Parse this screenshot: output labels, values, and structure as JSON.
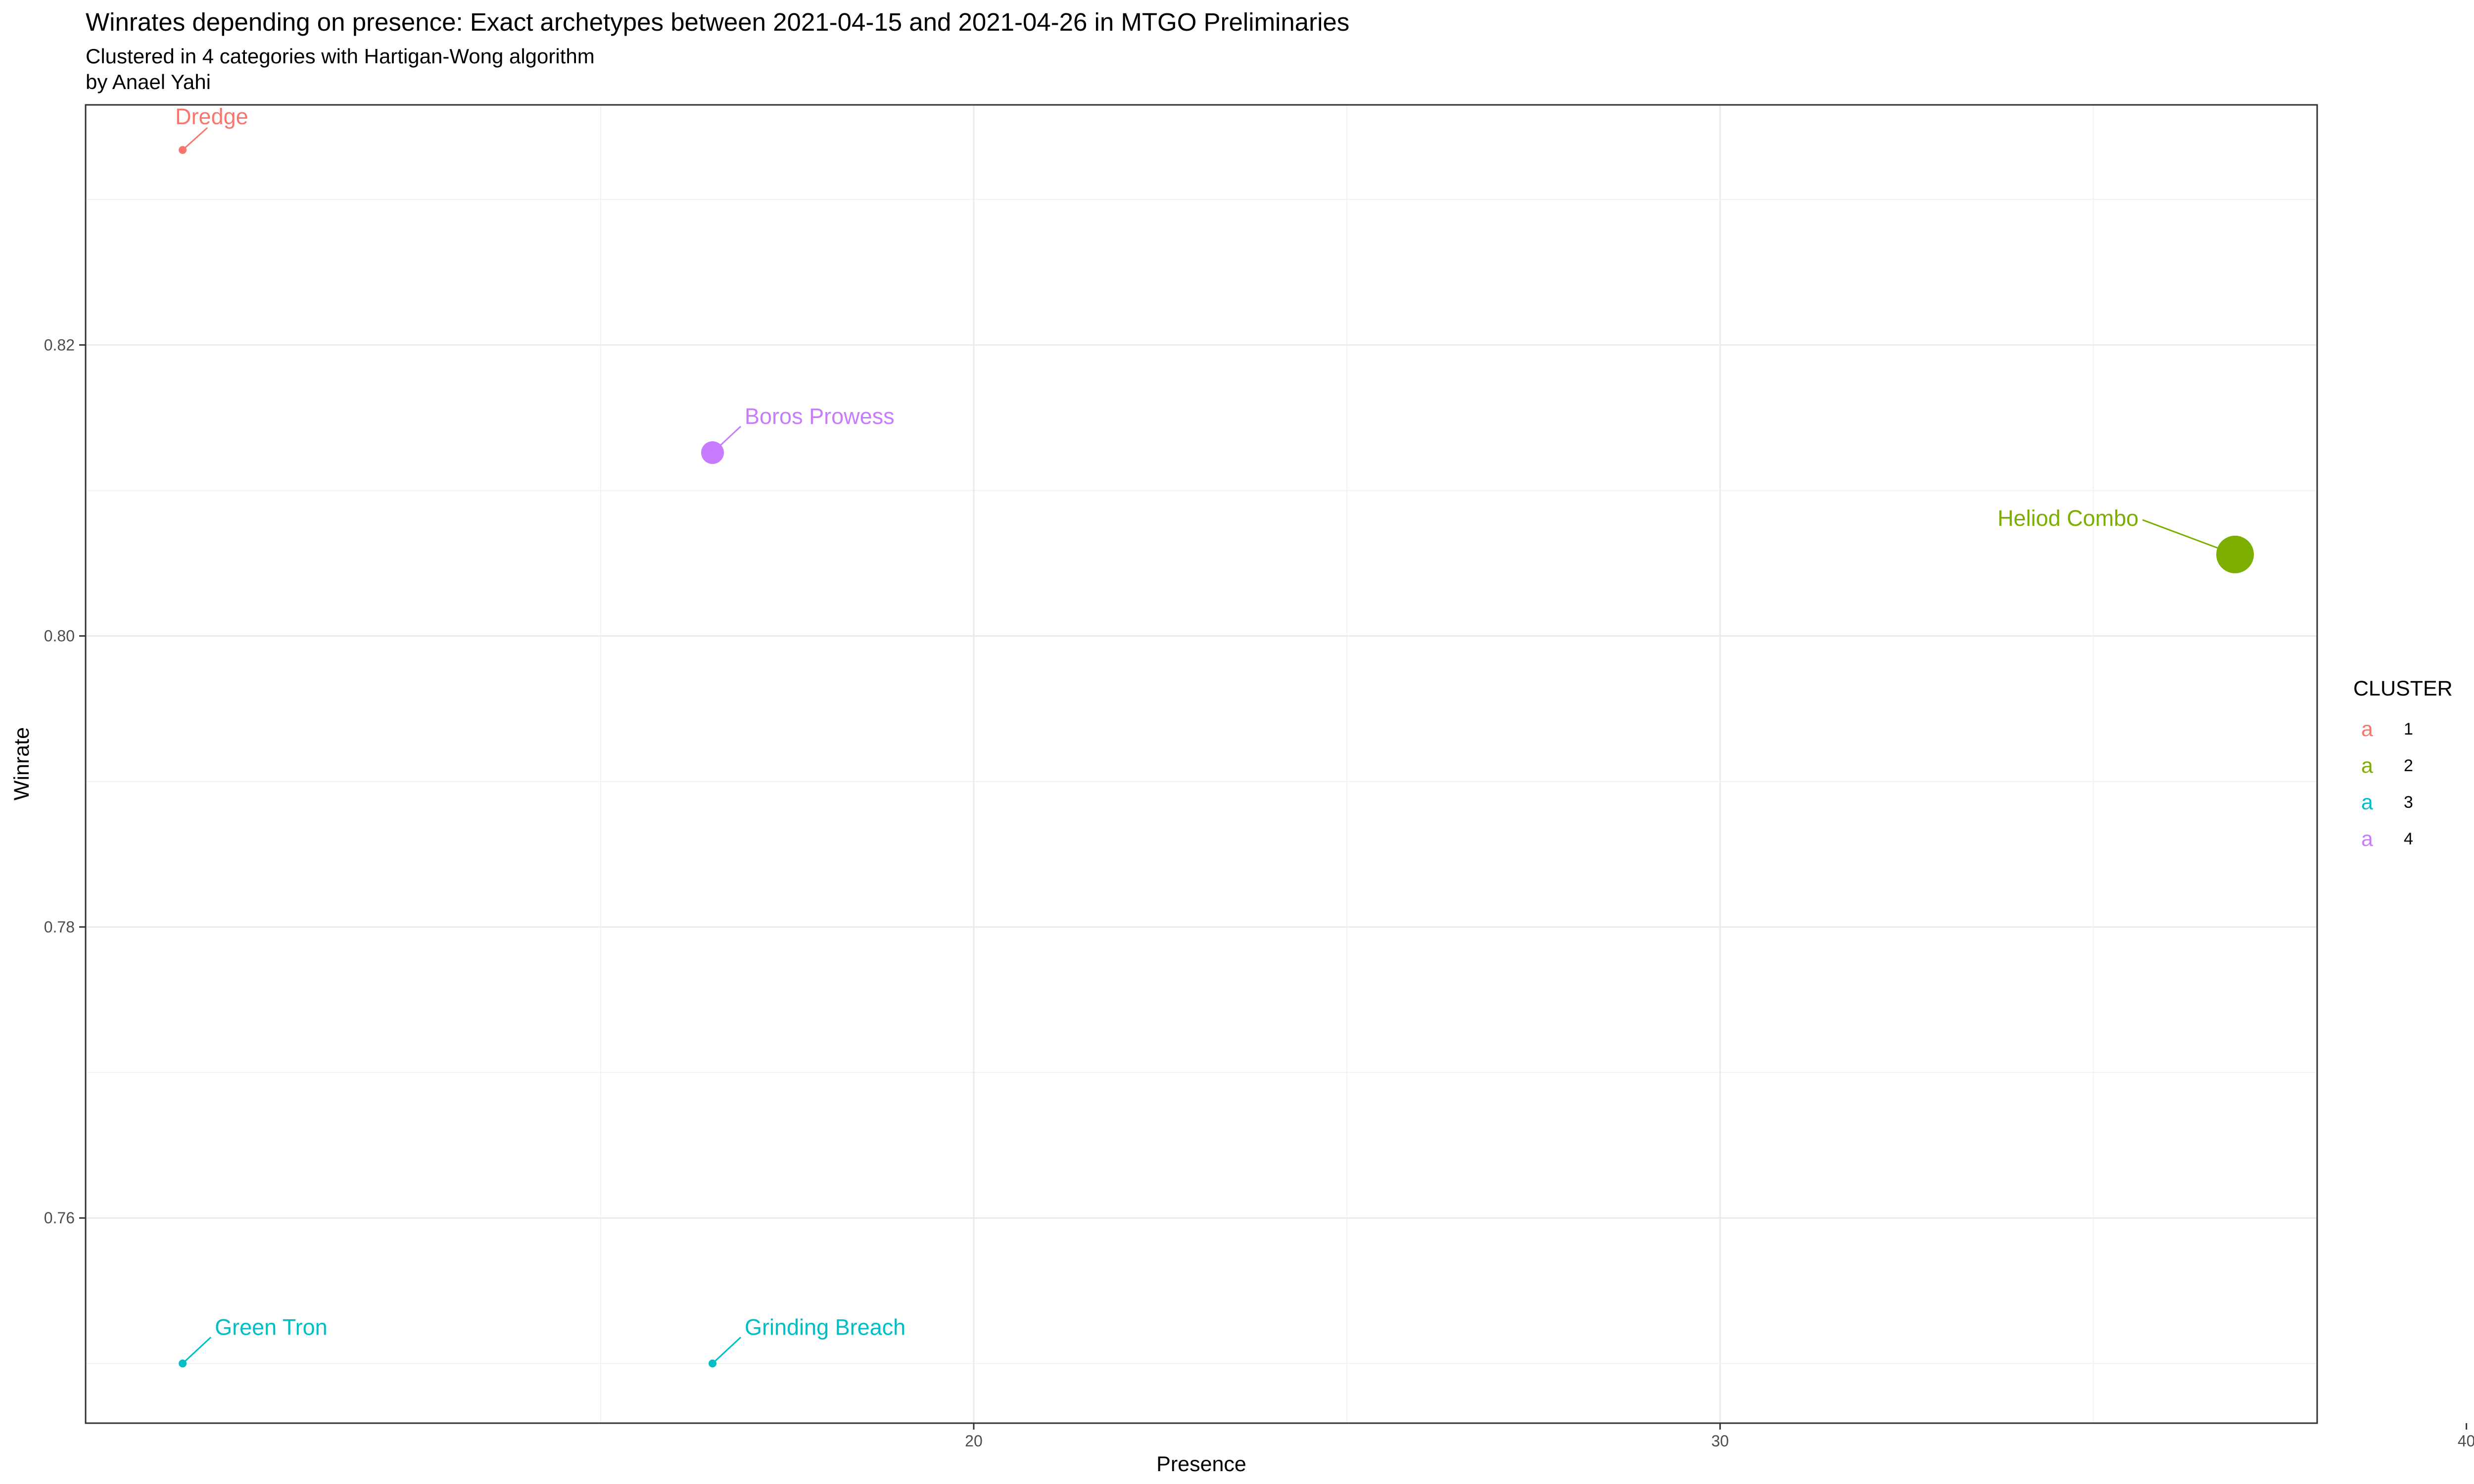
{
  "chart_data": {
    "type": "scatter",
    "title": "Winrates depending on presence: Exact archetypes  between 2021-04-15 and 2021-04-26 in MTGO Preliminaries",
    "subtitle_lines": [
      "Clustered in 4 categories with Hartigan-Wong algorithm",
      "by Anael Yahi"
    ],
    "xlabel": "Presence",
    "ylabel": "Winrate",
    "xlim": [
      8.1,
      38.0
    ],
    "ylim": [
      0.7459,
      0.8365
    ],
    "x_ticks": [
      20,
      30,
      40
    ],
    "y_ticks": [
      0.76,
      0.78,
      0.8,
      0.82
    ],
    "x_tick_labels": [
      "20",
      "30",
      "40"
    ],
    "y_tick_labels": [
      "0.76",
      "0.78",
      "0.80",
      "0.82"
    ],
    "grid": true,
    "legend": {
      "title": "CLUSTER",
      "position": "right",
      "key_glyph": "a",
      "entries": [
        {
          "label": "1",
          "color": "#F8766D"
        },
        {
          "label": "2",
          "color": "#7CAE00"
        },
        {
          "label": "3",
          "color": "#00BFC4"
        },
        {
          "label": "4",
          "color": "#C77CFF"
        }
      ]
    },
    "points": [
      {
        "label": "Dredge",
        "x": 9.4,
        "y": 0.8334,
        "cluster": 1,
        "size": 1,
        "color": "#F8766D"
      },
      {
        "label": "Boros Prowess",
        "x": 16.5,
        "y": 0.8126,
        "cluster": 4,
        "size": 3,
        "color": "#C77CFF"
      },
      {
        "label": "Heliod Combo",
        "x": 36.9,
        "y": 0.8056,
        "cluster": 2,
        "size": 5,
        "color": "#7CAE00"
      },
      {
        "label": "Green Tron",
        "x": 9.4,
        "y": 0.75,
        "cluster": 3,
        "size": 1,
        "color": "#00BFC4"
      },
      {
        "label": "Grinding Breach",
        "x": 16.5,
        "y": 0.75,
        "cluster": 3,
        "size": 1,
        "color": "#00BFC4"
      }
    ]
  }
}
